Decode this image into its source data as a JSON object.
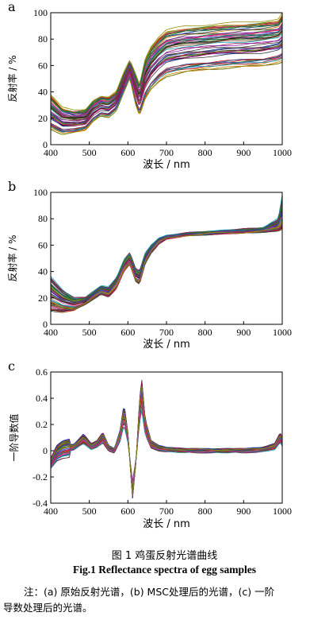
{
  "figure": {
    "caption_cn": "图 1  鸡蛋反射光谱曲线",
    "caption_en": "Fig.1  Reflectance spectra of egg samples",
    "note_line1": "注：(a) 原始反射光谱，(b) MSC处理后的光谱，(c) 一阶",
    "note_line2": "导数处理后的光谱。"
  },
  "chart_data": [
    {
      "panel": "a",
      "type": "line",
      "xlabel": "波长 / nm",
      "ylabel": "反射率 / %",
      "xlim": [
        400,
        1000
      ],
      "ylim": [
        0,
        100
      ],
      "xticks": [
        400,
        500,
        600,
        700,
        800,
        900,
        1000
      ],
      "yticks": [
        0,
        20,
        40,
        60,
        80,
        100
      ],
      "grid": false,
      "curve_count": 60,
      "shape": {
        "x": [
          400,
          430,
          460,
          490,
          510,
          530,
          550,
          570,
          590,
          605,
          620,
          630,
          645,
          660,
          680,
          700,
          750,
          800,
          850,
          900,
          950,
          990,
          1000
        ],
        "y": [
          22,
          17,
          16,
          19,
          26,
          29,
          28,
          33,
          50,
          60,
          42,
          32,
          50,
          56,
          62,
          67,
          71,
          73,
          74,
          75,
          76,
          78,
          82
        ]
      },
      "envelope": {
        "low": [
          12,
          8,
          9,
          11,
          18,
          22,
          21,
          26,
          40,
          50,
          30,
          22,
          35,
          42,
          48,
          52,
          55,
          57,
          58,
          59,
          60,
          62,
          63
        ],
        "high": [
          38,
          28,
          26,
          27,
          34,
          37,
          36,
          40,
          55,
          64,
          54,
          46,
          66,
          75,
          82,
          87,
          90,
          91,
          92,
          93,
          94,
          95,
          100
        ]
      }
    },
    {
      "panel": "b",
      "type": "line",
      "xlabel": "波长 / nm",
      "ylabel": "反射率 / %",
      "xlim": [
        400,
        1000
      ],
      "ylim": [
        0,
        100
      ],
      "xticks": [
        400,
        500,
        600,
        700,
        800,
        900,
        1000
      ],
      "yticks": [
        0,
        20,
        40,
        60,
        80,
        100
      ],
      "grid": false,
      "curve_count": 60,
      "shape": {
        "x": [
          400,
          430,
          460,
          490,
          510,
          530,
          550,
          570,
          590,
          605,
          620,
          630,
          645,
          660,
          680,
          700,
          750,
          800,
          850,
          900,
          950,
          990,
          1000
        ],
        "y": [
          24,
          16,
          14,
          18,
          22,
          26,
          25,
          31,
          45,
          50,
          37,
          35,
          50,
          57,
          63,
          66,
          68,
          69,
          70,
          70,
          71,
          73,
          77
        ]
      },
      "envelope": {
        "low": [
          10,
          9,
          10,
          15,
          19,
          23,
          21,
          27,
          40,
          45,
          32,
          30,
          46,
          54,
          61,
          65,
          67,
          68,
          69,
          69,
          70,
          71,
          72
        ],
        "high": [
          36,
          26,
          20,
          20,
          25,
          29,
          28,
          35,
          49,
          54,
          42,
          40,
          54,
          60,
          65,
          67,
          69,
          70,
          71,
          72,
          73,
          80,
          98
        ]
      }
    },
    {
      "panel": "c",
      "type": "line",
      "xlabel": "波长 / nm",
      "ylabel": "一阶导数值",
      "xlim": [
        400,
        1000
      ],
      "ylim": [
        -0.4,
        0.6
      ],
      "xticks": [
        400,
        500,
        600,
        700,
        800,
        900,
        1000
      ],
      "yticks": [
        -0.4,
        -0.2,
        0.0,
        0.2,
        0.4,
        0.6
      ],
      "grid": false,
      "curve_count": 60,
      "shape": {
        "x": [
          400,
          415,
          430,
          460,
          485,
          505,
          520,
          535,
          550,
          565,
          580,
          590,
          600,
          612,
          622,
          630,
          636,
          645,
          660,
          680,
          700,
          750,
          800,
          850,
          900,
          950,
          980,
          995,
          1000
        ],
        "y": [
          -0.1,
          -0.02,
          0.01,
          0.03,
          0.09,
          0.03,
          0.05,
          0.1,
          0.02,
          0.0,
          0.12,
          0.28,
          0.1,
          -0.3,
          -0.05,
          0.3,
          0.42,
          0.18,
          0.05,
          0.02,
          0.01,
          0.0,
          0.0,
          0.0,
          0.0,
          0.01,
          0.03,
          0.1,
          0.06
        ]
      },
      "spread": 0.05
    }
  ]
}
